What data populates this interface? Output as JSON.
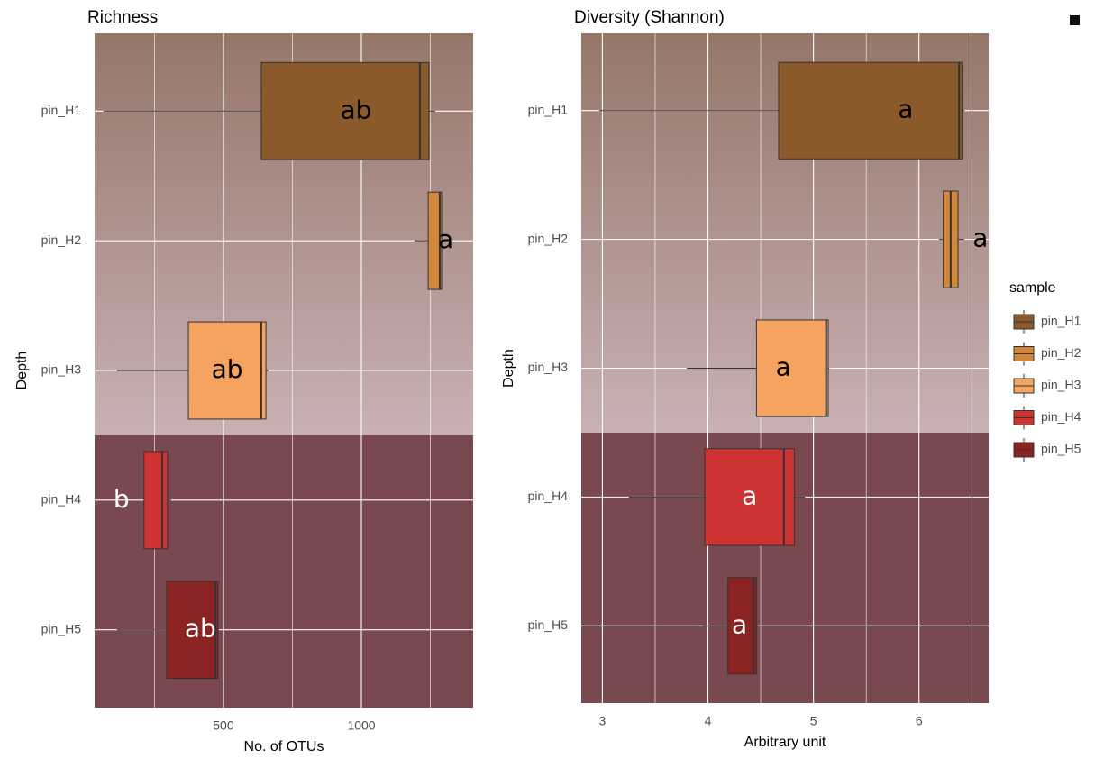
{
  "chart_data": [
    {
      "type": "boxplot",
      "title": "Richness",
      "xlabel": "No. of OTUs",
      "ylabel": "Depth",
      "categories": [
        "pin_H1",
        "pin_H2",
        "pin_H3",
        "pin_H4",
        "pin_H5"
      ],
      "boxes": [
        {
          "min": 65,
          "q1": 637,
          "median": 1212,
          "q3": 1245,
          "max": 1268
        },
        {
          "min": 1193,
          "q1": 1242,
          "median": 1284,
          "q3": 1291,
          "max": 1314
        },
        {
          "min": 114,
          "q1": 373,
          "median": 637,
          "q3": 654,
          "max": 663
        },
        {
          "min": 212,
          "q1": 212,
          "median": 278,
          "q3": 297,
          "max": 310
        },
        {
          "min": 114,
          "q1": 294,
          "median": 471,
          "q3": 480,
          "max": 484
        }
      ],
      "colors": [
        "#8b5a2b",
        "#d2873a",
        "#f4a460",
        "#cd3333",
        "#8b2323"
      ],
      "letters": [
        "ab",
        "a",
        "ab",
        "b",
        "ab"
      ],
      "letter_colors": [
        "#000000",
        "#000000",
        "#000000",
        "#ffffff",
        "#ffffff"
      ],
      "xlim": [
        33,
        1405
      ],
      "xticks": [
        500,
        1000
      ],
      "xminorticks": [
        250,
        750,
        1250
      ],
      "grid": true
    },
    {
      "type": "boxplot",
      "title": "Diversity (Shannon)",
      "xlabel": "Arbitrary unit",
      "ylabel": "Depth",
      "categories": [
        "pin_H1",
        "pin_H2",
        "pin_H3",
        "pin_H4",
        "pin_H5"
      ],
      "boxes": [
        {
          "min": 2.97,
          "q1": 4.67,
          "median": 6.38,
          "q3": 6.41,
          "max": 6.43
        },
        {
          "min": 6.19,
          "q1": 6.23,
          "median": 6.3,
          "q3": 6.37,
          "max": 6.43
        },
        {
          "min": 3.8,
          "q1": 4.46,
          "median": 5.12,
          "q3": 5.14,
          "max": 5.15
        },
        {
          "min": 3.25,
          "q1": 3.97,
          "median": 4.72,
          "q3": 4.82,
          "max": 4.92
        },
        {
          "min": 3.95,
          "q1": 4.19,
          "median": 4.43,
          "q3": 4.46,
          "max": 4.47
        }
      ],
      "colors": [
        "#8b5a2b",
        "#d2873a",
        "#f4a460",
        "#cd3333",
        "#8b2323"
      ],
      "letters": [
        "a",
        "a",
        "a",
        "a",
        "a"
      ],
      "letter_colors": [
        "#000000",
        "#000000",
        "#000000",
        "#ffffff",
        "#ffffff"
      ],
      "xlim": [
        2.8,
        6.66
      ],
      "xticks": [
        3,
        4,
        5,
        6
      ],
      "xminorticks": [
        3.5,
        4.5,
        5.5,
        6.5
      ],
      "grid": true
    }
  ],
  "legend": {
    "title": "sample",
    "entries": [
      "pin_H1",
      "pin_H2",
      "pin_H3",
      "pin_H4",
      "pin_H5"
    ]
  }
}
